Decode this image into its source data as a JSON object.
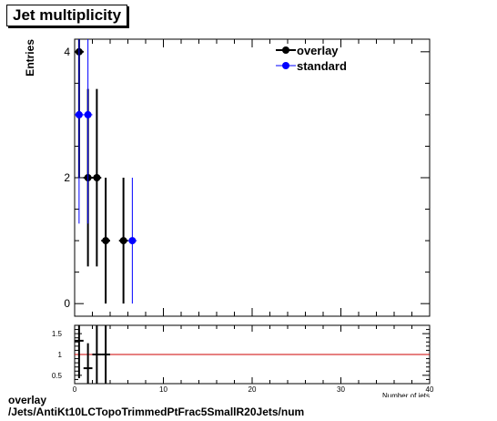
{
  "chart_data": [
    {
      "type": "scatter",
      "title": "Jet multiplicity",
      "ylabel": "Entries",
      "xlim": [
        0,
        40
      ],
      "ylim": [
        -0.2,
        4.2
      ],
      "yticks": [
        0,
        2,
        4
      ],
      "legend": "top-right",
      "series": [
        {
          "name": "overlay",
          "color": "#000000",
          "x": [
            0.5,
            1.5,
            2.5,
            3.5,
            5.5
          ],
          "y": [
            4,
            2,
            2,
            1,
            1
          ],
          "err": [
            2,
            1.41,
            1.41,
            1,
            1
          ]
        },
        {
          "name": "standard",
          "color": "#0000ff",
          "x": [
            0.5,
            1.5,
            6.5
          ],
          "y": [
            3,
            3,
            1
          ],
          "err": [
            1.73,
            1.73,
            1
          ]
        }
      ]
    },
    {
      "type": "scatter",
      "xlabel": "Number of jets",
      "xlim": [
        0,
        40
      ],
      "ylim": [
        0.3,
        1.7
      ],
      "xticks": [
        0,
        10,
        20,
        30,
        40
      ],
      "yticks": [
        0.5,
        1,
        1.5
      ],
      "reference_line": {
        "y": 1,
        "color": "#cc0000"
      },
      "series": [
        {
          "name": "",
          "color": "#000000",
          "x": [
            0.5,
            1.5,
            2.5,
            3.5
          ],
          "y": [
            1.33,
            0.67,
            1.0,
            1.0
          ],
          "err": [
            0.9,
            0.6,
            1.2,
            1.0
          ]
        }
      ]
    }
  ],
  "caption": {
    "line1": "overlay",
    "line2": "/Jets/AntiKt10LCTopoTrimmedPtFrac5SmallR20Jets/num"
  }
}
